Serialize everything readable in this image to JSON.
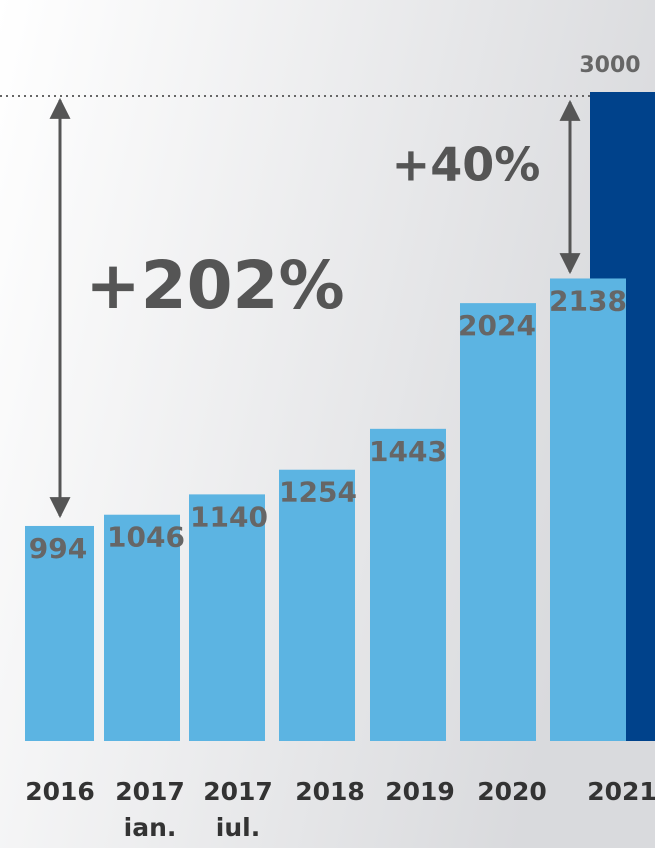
{
  "chart_data": {
    "type": "bar",
    "categories": [
      "2016",
      "2017",
      "2017",
      "2018",
      "2019",
      "2020",
      null,
      "2021"
    ],
    "category_notes": [
      null,
      "ian.",
      "iul.",
      null,
      null,
      null,
      null,
      null
    ],
    "values": [
      994,
      1046,
      1140,
      1254,
      1443,
      2024,
      2138,
      3000
    ],
    "colors": [
      "#5cb4e2",
      "#5cb4e2",
      "#5cb4e2",
      "#5cb4e2",
      "#5cb4e2",
      "#5cb4e2",
      "#5cb4e2",
      "#00428b"
    ],
    "ylim": [
      0,
      3000
    ],
    "annotations": [
      "+202%",
      "+40%"
    ]
  }
}
